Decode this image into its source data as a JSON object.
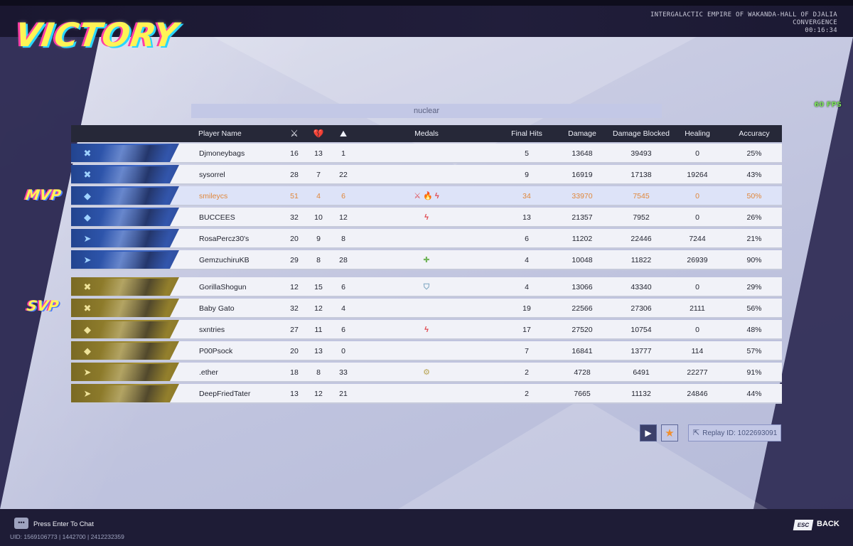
{
  "header": {
    "result": "VICTORY",
    "map_line1": "INTERGALACTIC EMPIRE OF WAKANDA-HALL OF DJALIA",
    "map_line2": "CONVERGENCE",
    "time": "00:16:34",
    "fps": "60 FPS"
  },
  "team_name": "nuclear",
  "columns": {
    "player_name": "Player Name",
    "kills_icon": "kills-icon",
    "deaths_icon": "deaths-icon",
    "assists_icon": "assists-icon",
    "medals": "Medals",
    "final_hits": "Final Hits",
    "damage": "Damage",
    "damage_blocked": "Damage Blocked",
    "healing": "Healing",
    "accuracy": "Accuracy"
  },
  "tags": {
    "mvp": "MVP",
    "svp": "SVP"
  },
  "team1": [
    {
      "name": "Djmoneybags",
      "kills": "16",
      "deaths": "13",
      "assists": "1",
      "medals": "",
      "final_hits": "5",
      "damage": "13648",
      "blocked": "39493",
      "healing": "0",
      "accuracy": "25%",
      "role": "vanguard-icon"
    },
    {
      "name": "sysorrel",
      "kills": "28",
      "deaths": "7",
      "assists": "22",
      "medals": "",
      "final_hits": "9",
      "damage": "16919",
      "blocked": "17138",
      "healing": "19264",
      "accuracy": "43%",
      "role": "vanguard-icon"
    },
    {
      "name": "smileycs",
      "kills": "51",
      "deaths": "4",
      "assists": "6",
      "medals": "⚔ 🔥 ϟ",
      "final_hits": "34",
      "damage": "33970",
      "blocked": "7545",
      "healing": "0",
      "accuracy": "50%",
      "role": "duelist-icon"
    },
    {
      "name": "BUCCEES",
      "kills": "32",
      "deaths": "10",
      "assists": "12",
      "medals": "ϟ",
      "final_hits": "13",
      "damage": "21357",
      "blocked": "7952",
      "healing": "0",
      "accuracy": "26%",
      "role": "duelist-icon"
    },
    {
      "name": "RosaPercz30's",
      "kills": "20",
      "deaths": "9",
      "assists": "8",
      "medals": "",
      "final_hits": "6",
      "damage": "11202",
      "blocked": "22446",
      "healing": "7244",
      "accuracy": "21%",
      "role": "strategist-icon"
    },
    {
      "name": "GemzuchiruKB",
      "kills": "29",
      "deaths": "8",
      "assists": "28",
      "medals": "✚",
      "final_hits": "4",
      "damage": "10048",
      "blocked": "11822",
      "healing": "26939",
      "accuracy": "90%",
      "role": "strategist-icon"
    }
  ],
  "team2": [
    {
      "name": "GorillaShogun",
      "kills": "12",
      "deaths": "15",
      "assists": "6",
      "medals": "⛉",
      "final_hits": "4",
      "damage": "13066",
      "blocked": "43340",
      "healing": "0",
      "accuracy": "29%",
      "role": "vanguard-icon"
    },
    {
      "name": "Baby Gato",
      "kills": "32",
      "deaths": "12",
      "assists": "4",
      "medals": "",
      "final_hits": "19",
      "damage": "22566",
      "blocked": "27306",
      "healing": "2111",
      "accuracy": "56%",
      "role": "vanguard-icon"
    },
    {
      "name": "sxntries",
      "kills": "27",
      "deaths": "11",
      "assists": "6",
      "medals": "ϟ",
      "final_hits": "17",
      "damage": "27520",
      "blocked": "10754",
      "healing": "0",
      "accuracy": "48%",
      "role": "duelist-icon"
    },
    {
      "name": "P00Psock",
      "kills": "20",
      "deaths": "13",
      "assists": "0",
      "medals": "",
      "final_hits": "7",
      "damage": "16841",
      "blocked": "13777",
      "healing": "114",
      "accuracy": "57%",
      "role": "duelist-icon"
    },
    {
      "name": ".ether",
      "kills": "18",
      "deaths": "8",
      "assists": "33",
      "medals": "⚙",
      "final_hits": "2",
      "damage": "4728",
      "blocked": "6491",
      "healing": "22277",
      "accuracy": "91%",
      "role": "strategist-icon"
    },
    {
      "name": "DeepFriedTater",
      "kills": "13",
      "deaths": "12",
      "assists": "21",
      "medals": "",
      "final_hits": "2",
      "damage": "7665",
      "blocked": "11132",
      "healing": "24846",
      "accuracy": "44%",
      "role": "strategist-icon"
    }
  ],
  "replay": {
    "label": "Replay ID: 1022693091"
  },
  "footer": {
    "chat": "Press Enter To Chat",
    "uid": "UID: 1569106773 | 1442700 | 2412232359",
    "esc": "ESC",
    "back": "BACK"
  },
  "colors": {
    "accent": "#e0873b",
    "team1": "#3a66c8",
    "team2": "#a28d32",
    "fps": "#7ce25d"
  }
}
